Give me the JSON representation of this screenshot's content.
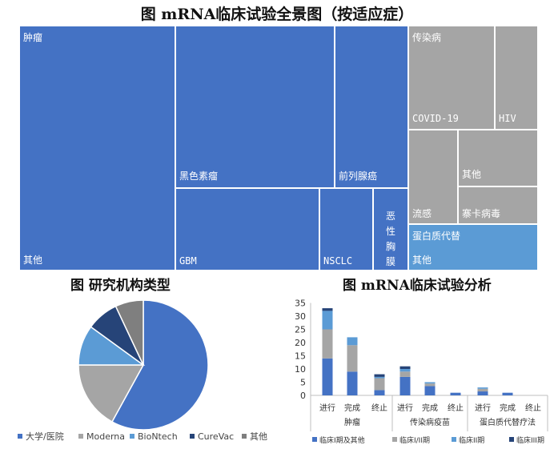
{
  "titles": {
    "treemap": "图  mRNA临床试验全景图（按适应症）",
    "pie": "图  研究机构类型",
    "bar": "图  mRNA临床试验分析"
  },
  "chart_data": [
    {
      "type": "treemap",
      "title": "图  mRNA临床试验全景图（按适应症）",
      "groups": [
        {
          "name": "肿瘤",
          "color": "#4472c4",
          "children": [
            "其他",
            "黑色素瘤",
            "前列腺癌",
            "GBM",
            "NSCLC",
            "恶性胸膜间皮瘤"
          ]
        },
        {
          "name": "传染病",
          "color": "#a5a5a5",
          "children": [
            "COVID-19",
            "HIV",
            "其他",
            "流感",
            "寨卡病毒"
          ]
        },
        {
          "name": "蛋白质代替",
          "color": "#5b9bd5",
          "children": [
            "其他"
          ]
        }
      ]
    },
    {
      "type": "pie",
      "title": "图  研究机构类型",
      "labels": [
        "大学/医院",
        "Moderna",
        "BioNtech",
        "CureVac",
        "其他"
      ],
      "values": [
        58,
        17,
        10,
        8,
        7
      ],
      "colors": [
        "#4472c4",
        "#a5a5a5",
        "#5b9bd5",
        "#264478",
        "#7f7f7f"
      ],
      "legend": "bottom"
    },
    {
      "type": "bar",
      "stacked": true,
      "title": "图  mRNA临床试验分析",
      "groups": [
        "肿瘤",
        "传染病疫苗",
        "蛋白质代替疗法"
      ],
      "categories": [
        "进行",
        "完成",
        "终止",
        "进行",
        "完成",
        "终止",
        "进行",
        "完成",
        "终止"
      ],
      "ylim": [
        0,
        35
      ],
      "yticks": [
        0,
        5,
        10,
        15,
        20,
        25,
        30,
        35
      ],
      "series": [
        {
          "name": "临床I期及其他",
          "color": "#4472c4",
          "values": [
            14,
            9,
            2,
            7,
            3.5,
            1,
            1.5,
            1,
            0
          ]
        },
        {
          "name": "临床I/II期",
          "color": "#a5a5a5",
          "values": [
            11,
            10,
            4.5,
            2,
            1,
            0,
            1,
            0,
            0
          ]
        },
        {
          "name": "临床II期",
          "color": "#5b9bd5",
          "values": [
            7,
            3,
            0.5,
            1,
            0.5,
            0,
            0.5,
            0,
            0
          ]
        },
        {
          "name": "临床III期",
          "color": "#264478",
          "values": [
            1,
            0,
            1,
            1,
            0,
            0,
            0,
            0,
            0
          ]
        }
      ],
      "legend": "bottom"
    }
  ],
  "treemap_labels": {
    "tumor_other": "肿瘤",
    "tumor_other_bottom": "其他",
    "melanoma": "黑色素瘤",
    "prostate": "前列腺癌",
    "gbm": "GBM",
    "nsclc": "NSCLC",
    "mesothelioma": "恶性胸膜间皮瘤",
    "infectious": "传染病",
    "covid": "COVID-19",
    "hiv": "HIV",
    "inf_other": "其他",
    "flu": "流感",
    "zika": "寨卡病毒",
    "protein": "蛋白质代替",
    "protein_other": "其他"
  }
}
